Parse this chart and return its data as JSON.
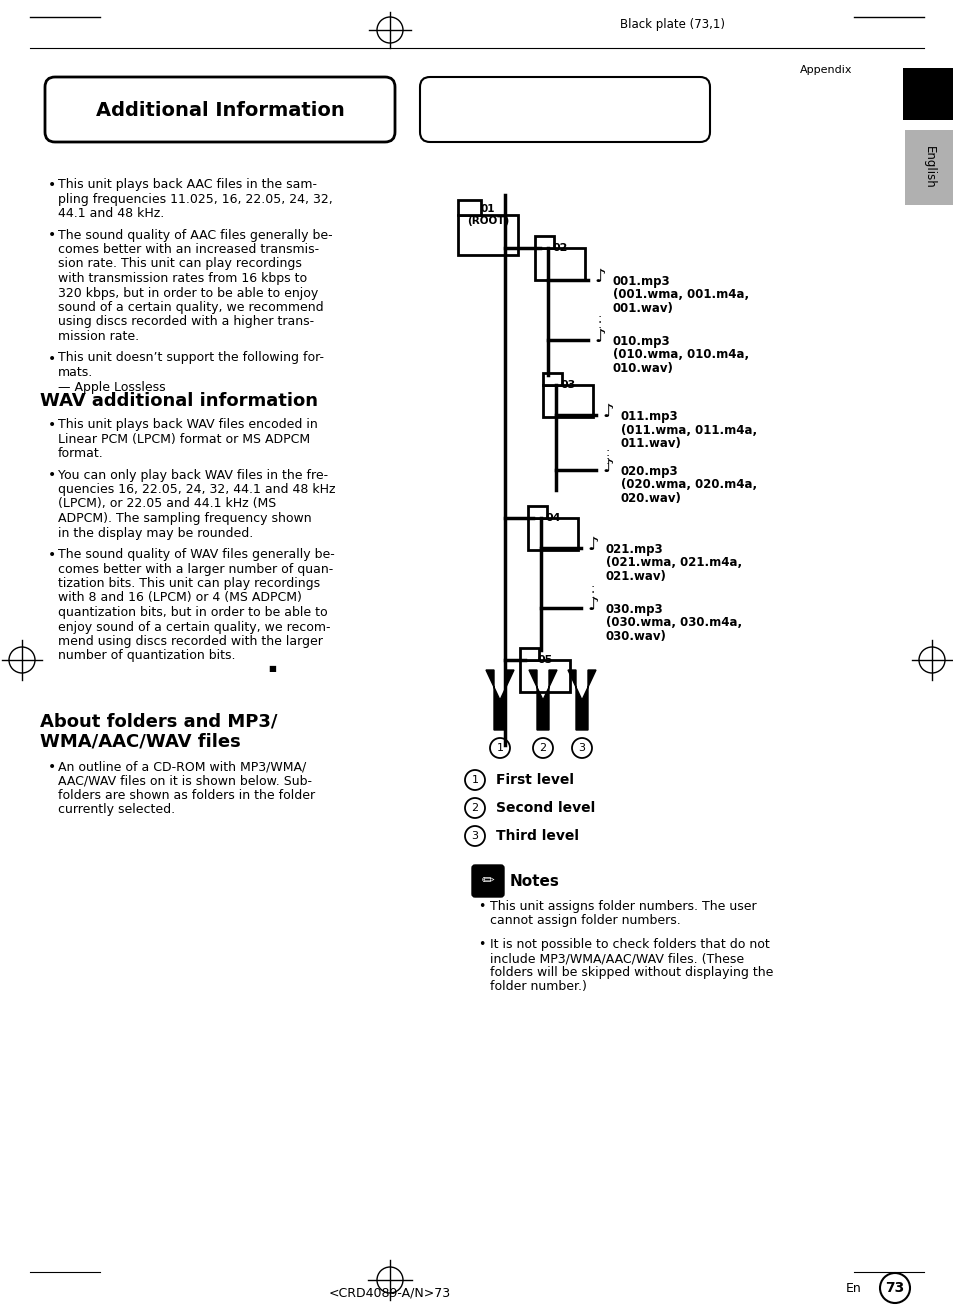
{
  "page_num": "73",
  "plate_text": "Black plate (73,1)",
  "appendix_text": "Appendix",
  "english_text": "English",
  "header_title": "Additional Information",
  "section1_title": "WAV additional information",
  "section2_title": "About folders and MP3/\nWMA/AAC/WAV files",
  "bullet_points_aac": [
    "This unit plays back AAC files in the sam-\npling frequencies 11.025, 16, 22.05, 24, 32,\n44.1 and 48 kHz.",
    "The sound quality of AAC files generally be-\ncomes better with an increased transmis-\nsion rate. This unit can play recordings\nwith transmission rates from 16 kbps to\n320 kbps, but in order to be able to enjoy\nsound of a certain quality, we recommend\nusing discs recorded with a higher trans-\nmission rate.",
    "This unit doesn’t support the following for-\nmats.\n— Apple Lossless"
  ],
  "bullet_points_wav": [
    "This unit plays back WAV files encoded in\nLinear PCM (LPCM) format or MS ADPCM\nformat.",
    "You can only play back WAV files in the fre-\nquencies 16, 22.05, 24, 32, 44.1 and 48 kHz\n(LPCM), or 22.05 and 44.1 kHz (MS\nADPCM). The sampling frequency shown\nin the display may be rounded.",
    "The sound quality of WAV files generally be-\ncomes better with a larger number of quan-\ntization bits. This unit can play recordings\nwith 8 and 16 (LPCM) or 4 (MS ADPCM)\nquantization bits, but in order to be able to\nenjoy sound of a certain quality, we recom-\nmend using discs recorded with the larger\nnumber of quantization bits."
  ],
  "bullet_points_about": [
    "An outline of a CD-ROM with MP3/WMA/\nAAC/WAV files on it is shown below. Sub-\nfolders are shown as folders in the folder\ncurrently selected."
  ],
  "legend_items": [
    {
      "num": "1",
      "text": "First level"
    },
    {
      "num": "2",
      "text": "Second level"
    },
    {
      "num": "3",
      "text": "Third level"
    }
  ],
  "notes_title": "Notes",
  "notes_bullets": [
    "This unit assigns folder numbers. The user\ncannot assign folder numbers.",
    "It is not possible to check folders that do not\ninclude MP3/WMA/AAC/WAV files. (These\nfolders will be skipped without displaying the\nfolder number.)"
  ],
  "bottom_text": "<CRD4089-A/N>73",
  "en_text": "En",
  "bg_color": "#ffffff",
  "text_color": "#000000"
}
